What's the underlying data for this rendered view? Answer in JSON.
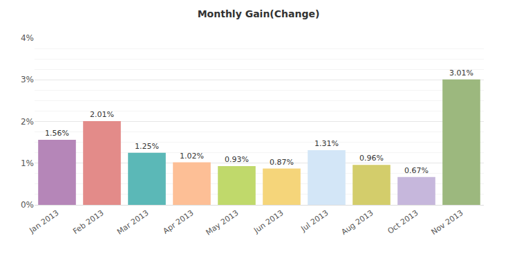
{
  "chart_data": {
    "type": "bar",
    "title": "Monthly Gain(Change)",
    "categories": [
      "Jan 2013",
      "Feb 2013",
      "Mar 2013",
      "Apr 2013",
      "May 2013",
      "Jun 2013",
      "Jul 2013",
      "Aug 2013",
      "Oct 2013",
      "Nov 2013"
    ],
    "values": [
      1.56,
      2.01,
      1.25,
      1.02,
      0.93,
      0.87,
      1.31,
      0.96,
      0.67,
      3.01
    ],
    "value_labels": [
      "1.56%",
      "2.01%",
      "1.25%",
      "1.02%",
      "0.93%",
      "0.87%",
      "1.31%",
      "0.96%",
      "0.67%",
      "3.01%"
    ],
    "colors": [
      "#b586b8",
      "#e38b89",
      "#5bb8b7",
      "#fdbf96",
      "#c0d96b",
      "#f5d57a",
      "#d3e6f7",
      "#d3cd6b",
      "#c6b7dc",
      "#9cb87e"
    ],
    "ylim": [
      0,
      4
    ],
    "yticks": [
      {
        "value": 0,
        "label": "0%"
      },
      {
        "value": 1,
        "label": "1%"
      },
      {
        "value": 2,
        "label": "2%"
      },
      {
        "value": 3,
        "label": "3%"
      },
      {
        "value": 4,
        "label": "4%"
      }
    ],
    "grid": true,
    "data_labels": true
  }
}
